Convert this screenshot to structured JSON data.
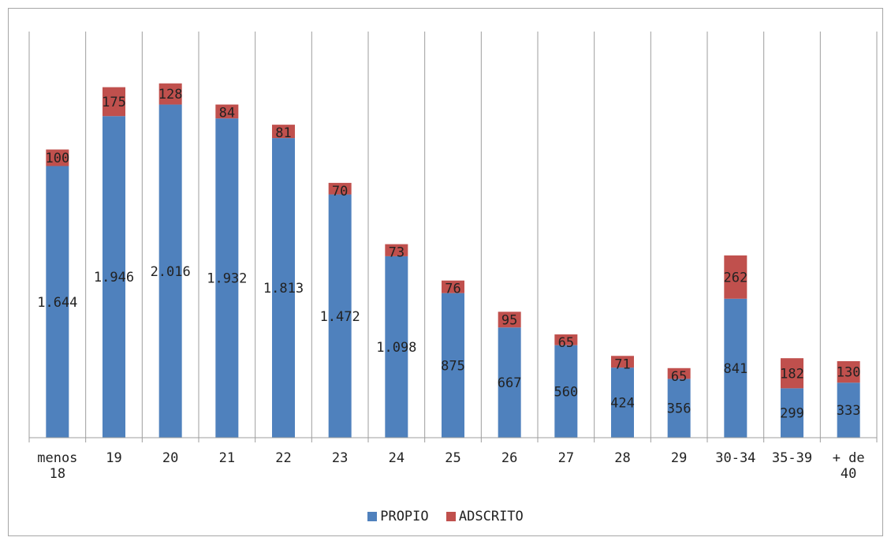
{
  "chart_data": {
    "type": "bar",
    "stacked": true,
    "categories": [
      "menos 18",
      "19",
      "20",
      "21",
      "22",
      "23",
      "24",
      "25",
      "26",
      "27",
      "28",
      "29",
      "30-34",
      "35-39",
      "+ de 40"
    ],
    "category_labels": [
      [
        "menos",
        "18"
      ],
      [
        "19"
      ],
      [
        "20"
      ],
      [
        "21"
      ],
      [
        "22"
      ],
      [
        "23"
      ],
      [
        "24"
      ],
      [
        "25"
      ],
      [
        "26"
      ],
      [
        "27"
      ],
      [
        "28"
      ],
      [
        "29"
      ],
      [
        "30-34"
      ],
      [
        "35-39"
      ],
      [
        "+ de",
        "40"
      ]
    ],
    "series": [
      {
        "name": "PROPIO",
        "color": "#4f81bd",
        "values": [
          1644,
          1946,
          2016,
          1932,
          1813,
          1472,
          1098,
          875,
          667,
          560,
          424,
          356,
          841,
          299,
          333
        ],
        "labels": [
          "1.644",
          "1.946",
          "2.016",
          "1.932",
          "1.813",
          "1.472",
          "1.098",
          "875",
          "667",
          "560",
          "424",
          "356",
          "841",
          "299",
          "333"
        ]
      },
      {
        "name": "ADSCRITO",
        "color": "#c0504d",
        "values": [
          100,
          175,
          128,
          84,
          81,
          70,
          73,
          76,
          95,
          65,
          71,
          65,
          262,
          182,
          130
        ],
        "labels": [
          "100",
          "175",
          "128",
          "84",
          "81",
          "70",
          "73",
          "76",
          "95",
          "65",
          "71",
          "65",
          "262",
          "182",
          "130"
        ]
      }
    ],
    "ylim": [
      0,
      2200
    ],
    "gridlines": "vertical",
    "legend": "bottom",
    "title": "",
    "xlabel": "",
    "ylabel": ""
  }
}
